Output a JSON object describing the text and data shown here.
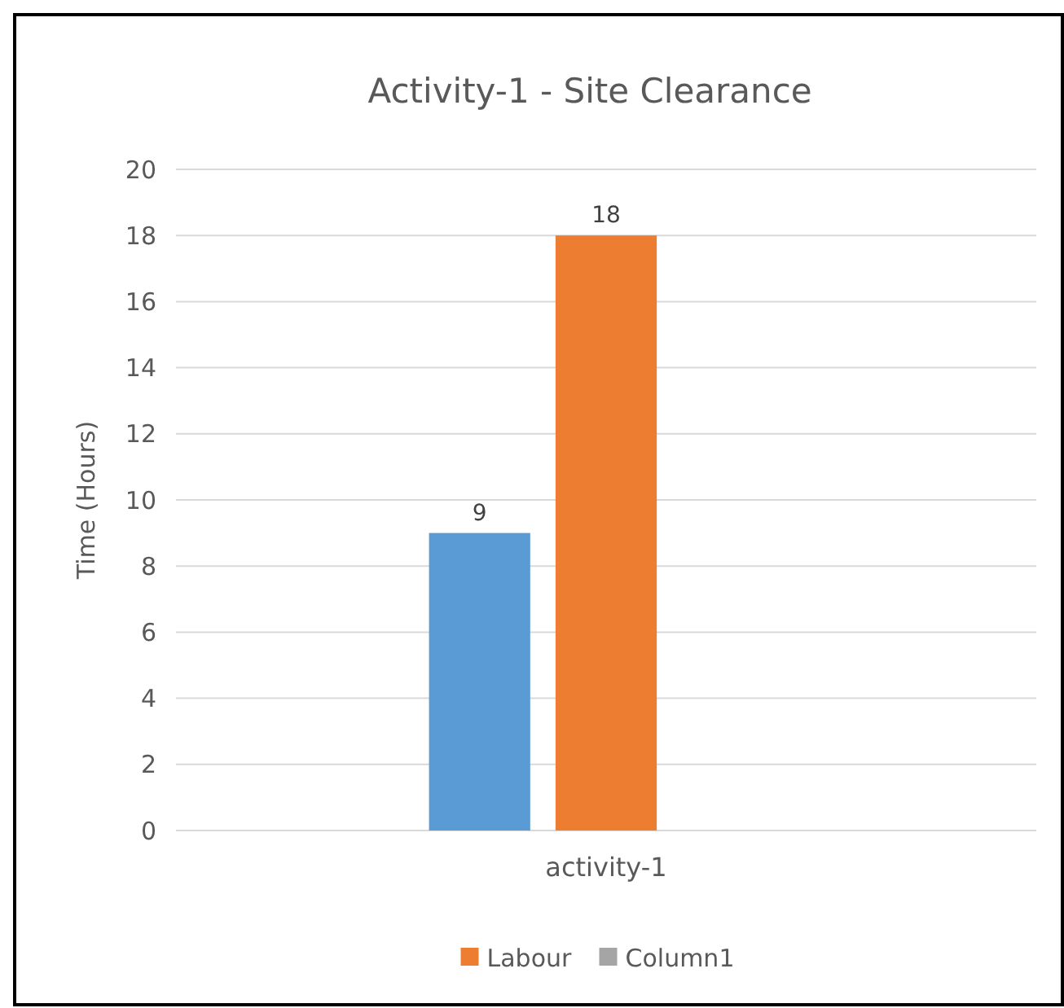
{
  "chart_data": {
    "type": "bar",
    "title": "Activity-1 - Site Clearance",
    "ylabel": "Time (Hours)",
    "categories": [
      "activity-1"
    ],
    "series": [
      {
        "color": "#5b9bd5",
        "values": [
          9
        ]
      },
      {
        "name": "Labour",
        "color": "#ed7d31",
        "values": [
          18
        ]
      },
      {
        "name": "Column1",
        "color": "#a5a5a5",
        "values": [
          null
        ]
      }
    ],
    "ylim": [
      0,
      20
    ],
    "yticks": [
      0,
      2,
      4,
      6,
      8,
      10,
      12,
      14,
      16,
      18,
      20
    ],
    "grid": "y",
    "legend": "bottom",
    "data_labels": true
  }
}
